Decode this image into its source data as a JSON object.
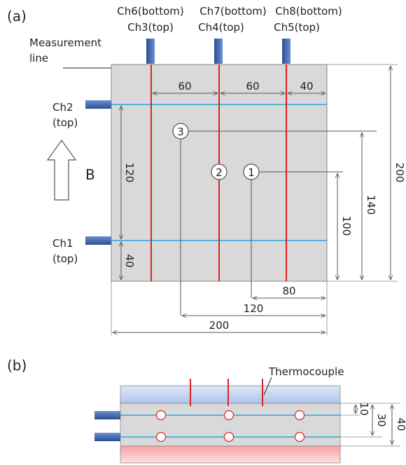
{
  "panel_a": {
    "label": "(a)",
    "ch_top_labels": [
      {
        "line1": "Ch6(bottom)",
        "line2": "Ch3(top)"
      },
      {
        "line1": "Ch7(bottom)",
        "line2": "Ch4(top)"
      },
      {
        "line1": "Ch8(bottom)",
        "line2": "Ch5(top)"
      }
    ],
    "ch2": {
      "line1": "Ch2",
      "line2": "(top)"
    },
    "ch1": {
      "line1": "Ch1",
      "line2": "(top)"
    },
    "measurement_line": {
      "line1": "Measurement",
      "line2": "line"
    },
    "field_label": "B",
    "points": [
      "1",
      "2",
      "3"
    ],
    "dims": {
      "top_60_a": "60",
      "top_60_b": "60",
      "top_40": "40",
      "left_120": "120",
      "left_40": "40",
      "right_100": "100",
      "right_140": "140",
      "right_200": "200",
      "bottom_80": "80",
      "bottom_120": "120",
      "bottom_200": "200"
    }
  },
  "panel_b": {
    "label": "(b)",
    "thermocouple_label": "Thermocouple",
    "dims": {
      "d10": "10",
      "d30": "30",
      "d40": "40"
    }
  },
  "colors": {
    "plate": "#d9d9d9",
    "red_line": "#e02020",
    "blue_line": "#29a8df",
    "connector": "#3f66b0",
    "top_cover": "#c6d9f1",
    "bottom_cover": "#f8b5b5"
  }
}
